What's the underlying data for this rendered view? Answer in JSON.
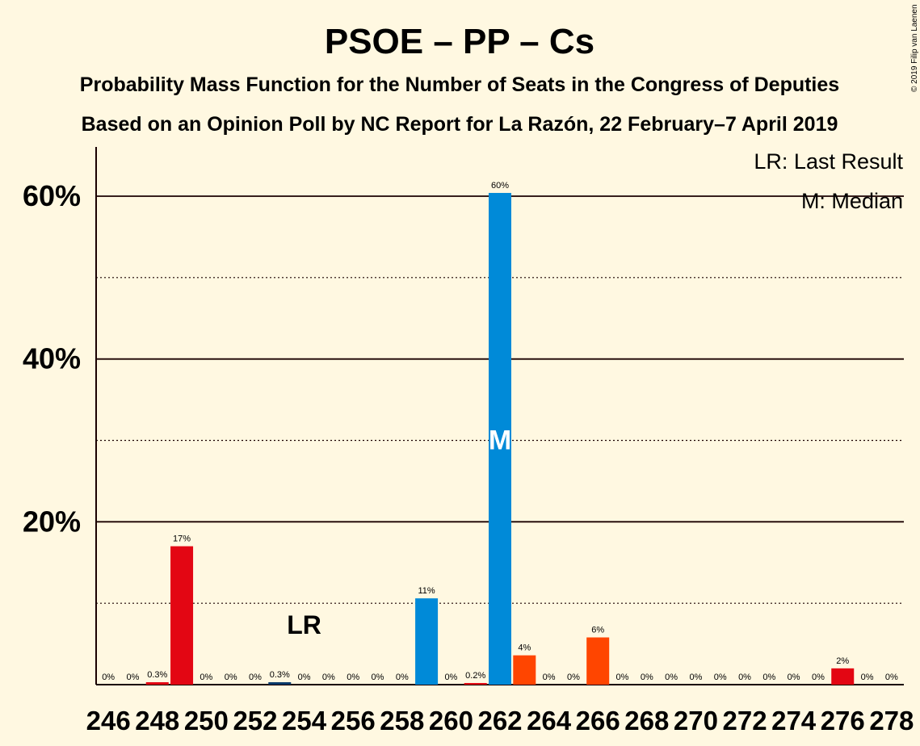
{
  "chart_data": {
    "type": "bar",
    "title": "PSOE – PP – Cs",
    "subtitle_1": "Probability Mass Function for the Number of Seats in the Congress of Deputies",
    "subtitle_2": "Based on an Opinion Poll by NC Report for La Razón, 22 February–7 April 2019",
    "copyright": "© 2019 Filip van Laenen",
    "legend": {
      "last_result": "LR: Last Result",
      "median": "M: Median",
      "placement": "top-right"
    },
    "x": [
      246,
      247,
      248,
      249,
      250,
      251,
      252,
      253,
      254,
      255,
      256,
      257,
      258,
      259,
      260,
      261,
      262,
      263,
      264,
      265,
      266,
      267,
      268,
      269,
      270,
      271,
      272,
      273,
      274,
      275,
      276,
      277,
      278
    ],
    "values": [
      0,
      0,
      0.3,
      17,
      0,
      0,
      0,
      0.3,
      0,
      0,
      0,
      0,
      0,
      10.6,
      0,
      0.2,
      60.4,
      3.6,
      0,
      0,
      5.8,
      0,
      0,
      0,
      0,
      0,
      0,
      0,
      0,
      0,
      2,
      0,
      0
    ],
    "labels": [
      "0%",
      "0%",
      "0.3%",
      "17%",
      "0%",
      "0%",
      "0%",
      "0.3%",
      "0%",
      "0%",
      "0%",
      "0%",
      "0%",
      "11%",
      "0%",
      "0.2%",
      "60%",
      "4%",
      "0%",
      "0%",
      "6%",
      "0%",
      "0%",
      "0%",
      "0%",
      "0%",
      "0%",
      "0%",
      "0%",
      "0%",
      "2%",
      "0%",
      "0%"
    ],
    "bar_colors": [
      "#e30613",
      "#e30613",
      "#e30613",
      "#e30613",
      "#e30613",
      "#e30613",
      "#e30613",
      "#0a3a6a",
      "#e30613",
      "#e30613",
      "#e30613",
      "#e30613",
      "#e30613",
      "#008ad8",
      "#e30613",
      "#e30613",
      "#008ad8",
      "#ff4500",
      "#e30613",
      "#e30613",
      "#ff4500",
      "#e30613",
      "#e30613",
      "#e30613",
      "#e30613",
      "#e30613",
      "#e30613",
      "#e30613",
      "#e30613",
      "#e30613",
      "#e30613",
      "#e30613",
      "#e30613"
    ],
    "x_ticks": [
      "246",
      "248",
      "250",
      "252",
      "254",
      "256",
      "258",
      "260",
      "262",
      "264",
      "266",
      "268",
      "270",
      "272",
      "274",
      "276",
      "278"
    ],
    "y_ticks": [
      "20%",
      "40%",
      "60%"
    ],
    "ylim": [
      0,
      66
    ],
    "last_result_seat": 254,
    "last_result_marker": "LR",
    "median_seat": 262,
    "median_marker": "M",
    "grid": true
  }
}
